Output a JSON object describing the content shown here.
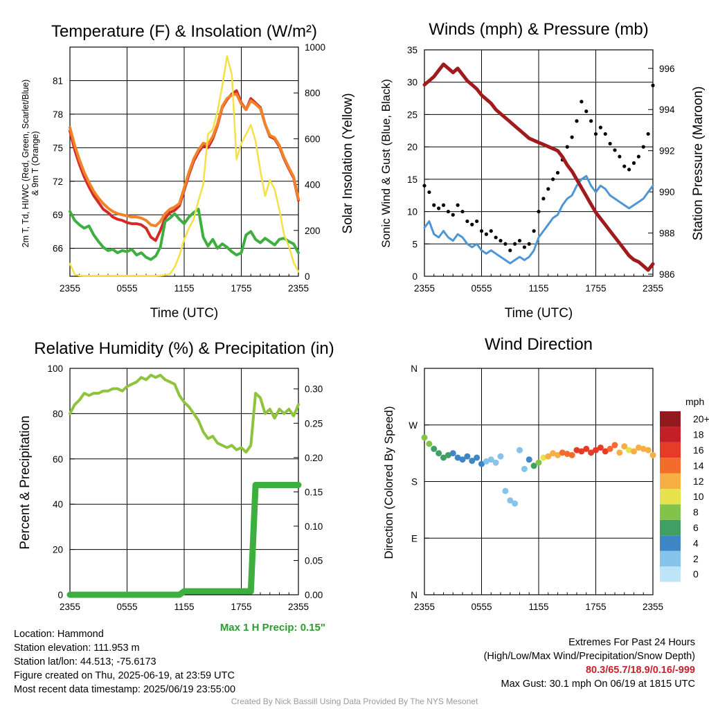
{
  "colors": {
    "temp": "#d42a27",
    "dewpoint": "#3daf3f",
    "heat_index": "#39a03a",
    "temp9m": "#f0832a",
    "solar": "#f5e045",
    "pressure": "#a01b1b",
    "wind": "#4d96d6",
    "gust": "#000000",
    "rh": "#8ec33e",
    "precip": "#3daf3f",
    "precip_label": "#2f9a2f",
    "extremes": "#c8202a",
    "credit": "#9a9a9a"
  },
  "panels": {
    "temperature": {
      "title": "Temperature (F) & Insolation (W/m²)",
      "y_left_label": "2m T, Td, HI/WC (Red, Green, Scarlet/Blue) & 9m T (Orange)",
      "y_right_label": "Solar Insolation (Yellow)",
      "x_label": "Time (UTC)"
    },
    "winds": {
      "title": "Winds (mph) & Pressure (mb)",
      "y_left_label": "Sonic Wind & Gust (Blue, Black)",
      "y_right_label": "Station Pressure (Maroon)",
      "x_label": "Time (UTC)"
    },
    "humidity": {
      "title": "Relative Humidity (%) & Precipitation (in)",
      "y_left_label": "Percent & Precipitation",
      "max_precip_label": "Max 1 H Precip: 0.15\""
    },
    "direction": {
      "title": "Wind Direction",
      "y_left_label": "Direction (Colored By Speed)",
      "legend_title": "mph"
    }
  },
  "chart_data": [
    {
      "type": "line",
      "title": "Temperature (F) & Insolation (W/m²)",
      "xlabel": "Time (UTC)",
      "ylabel": "2m T, Td, HI/WC (Red, Green, Scarlet/Blue) & 9m T (Orange)",
      "y2label": "Solar Insolation (Yellow)",
      "x_ticks": [
        "2355",
        "0555",
        "1155",
        "1755",
        "2355"
      ],
      "xlim": [
        0,
        24
      ],
      "ylim": [
        63.5,
        84
      ],
      "y_ticks": [
        66,
        69,
        72,
        75,
        78,
        81
      ],
      "y2lim": [
        0,
        1000
      ],
      "y2_ticks": [
        0,
        200,
        400,
        600,
        800,
        1000
      ],
      "x": [
        0,
        0.5,
        1,
        1.5,
        2,
        2.5,
        3,
        3.5,
        4,
        4.5,
        5,
        5.5,
        6,
        6.5,
        7,
        7.5,
        8,
        8.5,
        9,
        9.5,
        10,
        10.5,
        11,
        11.5,
        12,
        12.5,
        13,
        13.5,
        14,
        14.5,
        15,
        15.5,
        16,
        16.5,
        17,
        17.5,
        18,
        18.5,
        19,
        19.5,
        20,
        20.5,
        21,
        21.5,
        22,
        22.5,
        23,
        23.5,
        24
      ],
      "series": [
        {
          "name": "2m T",
          "axis": "left",
          "color": "#d42a27",
          "values": [
            76.5,
            74.8,
            73.5,
            72.4,
            71.5,
            70.7,
            70.1,
            69.5,
            69.2,
            68.8,
            68.6,
            68.5,
            68.3,
            68.2,
            68.2,
            68.1,
            67.8,
            67.0,
            66.7,
            67.6,
            68.7,
            69.2,
            69.4,
            69.8,
            71.2,
            72.6,
            73.8,
            74.6,
            75.2,
            75.0,
            75.8,
            77.0,
            78.6,
            79.3,
            79.8,
            80.1,
            79.0,
            78.4,
            79.4,
            79.0,
            78.6,
            77.1,
            76.0,
            75.8,
            75.1,
            74.0,
            73.1,
            72.3,
            70.3
          ]
        },
        {
          "name": "9m T",
          "axis": "left",
          "color": "#f0832a",
          "values": [
            76.8,
            75.2,
            73.9,
            72.8,
            71.9,
            71.1,
            70.5,
            70.0,
            69.6,
            69.3,
            69.1,
            69.0,
            68.9,
            68.8,
            68.8,
            68.7,
            68.5,
            68.1,
            68.0,
            68.4,
            69.1,
            69.5,
            69.7,
            70.0,
            71.4,
            72.8,
            74.0,
            74.8,
            75.4,
            75.3,
            76.0,
            77.1,
            78.7,
            79.4,
            79.7,
            79.8,
            78.9,
            78.4,
            79.2,
            78.9,
            78.5,
            77.1,
            76.1,
            75.9,
            75.2,
            74.1,
            73.2,
            72.4,
            70.4
          ]
        },
        {
          "name": "Td",
          "axis": "left",
          "color": "#3daf3f",
          "values": [
            69.3,
            68.5,
            68.1,
            67.8,
            68.0,
            67.2,
            66.6,
            66.1,
            65.8,
            65.9,
            65.6,
            65.8,
            65.7,
            65.9,
            65.4,
            65.6,
            65.2,
            65.0,
            65.3,
            66.1,
            68.4,
            68.7,
            69.1,
            68.6,
            68.2,
            68.8,
            69.2,
            69.5,
            67.0,
            66.2,
            66.8,
            66.0,
            66.4,
            66.1,
            65.7,
            65.4,
            65.6,
            67.2,
            67.5,
            66.8,
            66.5,
            66.9,
            66.6,
            66.3,
            66.8,
            66.9,
            66.6,
            66.4,
            65.6
          ]
        },
        {
          "name": "Solar Insolation",
          "axis": "right",
          "color": "#f5e045",
          "values": [
            55,
            8,
            3,
            2,
            2,
            2,
            2,
            2,
            2,
            2,
            2,
            2,
            2,
            2,
            2,
            2,
            2,
            2,
            2,
            3,
            5,
            10,
            40,
            90,
            160,
            210,
            250,
            330,
            400,
            620,
            640,
            720,
            830,
            960,
            880,
            510,
            580,
            620,
            660,
            590,
            460,
            350,
            420,
            380,
            290,
            180,
            130,
            60,
            20
          ]
        }
      ]
    },
    {
      "type": "line",
      "title": "Winds (mph) & Pressure (mb)",
      "xlabel": "Time (UTC)",
      "ylabel": "Sonic Wind & Gust (Blue, Black)",
      "y2label": "Station Pressure (Maroon)",
      "x_ticks": [
        "2355",
        "0555",
        "1155",
        "1755",
        "2355"
      ],
      "xlim": [
        0,
        24
      ],
      "ylim": [
        0,
        35
      ],
      "y_ticks": [
        0,
        5,
        10,
        15,
        20,
        25,
        30,
        35
      ],
      "y2lim": [
        985.9,
        996.9
      ],
      "y2_ticks": [
        986,
        988,
        990,
        992,
        994,
        996
      ],
      "x": [
        0,
        0.5,
        1,
        1.5,
        2,
        2.5,
        3,
        3.5,
        4,
        4.5,
        5,
        5.5,
        6,
        6.5,
        7,
        7.5,
        8,
        8.5,
        9,
        9.5,
        10,
        10.5,
        11,
        11.5,
        12,
        12.5,
        13,
        13.5,
        14,
        14.5,
        15,
        15.5,
        16,
        16.5,
        17,
        17.5,
        18,
        18.5,
        19,
        19.5,
        20,
        20.5,
        21,
        21.5,
        22,
        22.5,
        23,
        23.5,
        24
      ],
      "series": [
        {
          "name": "Sonic Wind",
          "axis": "left",
          "color": "#4d96d6",
          "values": [
            7.5,
            8.5,
            6.5,
            6.0,
            7.0,
            6.0,
            5.5,
            6.5,
            6.0,
            5.0,
            4.5,
            5.0,
            4.0,
            3.5,
            4.0,
            3.5,
            3.0,
            2.5,
            2.0,
            2.5,
            3.0,
            2.5,
            3.0,
            4.0,
            6.0,
            7.0,
            8.0,
            9.0,
            9.5,
            11.0,
            12.0,
            12.5,
            14.0,
            15.0,
            15.5,
            14.0,
            13.0,
            14.0,
            13.5,
            12.5,
            12.0,
            11.5,
            11.0,
            10.5,
            11.0,
            11.5,
            12.0,
            13.0,
            14.0
          ]
        },
        {
          "name": "Gust",
          "axis": "left",
          "color": "#000000",
          "values": [
            14.0,
            13.0,
            11.0,
            10.5,
            11.0,
            10.0,
            9.5,
            11.0,
            10.0,
            8.5,
            8.0,
            8.5,
            7.0,
            6.5,
            7.0,
            6.0,
            5.5,
            5.0,
            4.0,
            5.0,
            5.5,
            4.5,
            5.0,
            7.0,
            10.0,
            12.0,
            13.5,
            15.0,
            16.0,
            18.0,
            20.0,
            21.5,
            24.0,
            27.0,
            25.5,
            24.0,
            22.0,
            23.0,
            22.0,
            20.5,
            19.5,
            18.5,
            17.0,
            16.5,
            17.5,
            18.5,
            20.0,
            22.0,
            29.5
          ]
        },
        {
          "name": "Station Pressure",
          "axis": "right",
          "color": "#a01b1b",
          "values": [
            995.2,
            995.4,
            995.6,
            995.9,
            996.2,
            996.0,
            995.8,
            996.0,
            995.7,
            995.4,
            995.2,
            995.0,
            994.7,
            994.5,
            994.3,
            994.0,
            993.8,
            993.6,
            993.4,
            993.2,
            993.0,
            992.8,
            992.6,
            992.5,
            992.4,
            992.3,
            992.2,
            992.1,
            992.0,
            991.7,
            991.3,
            991.0,
            990.6,
            990.2,
            989.8,
            989.4,
            989.0,
            988.7,
            988.4,
            988.1,
            987.8,
            987.5,
            987.2,
            986.9,
            986.7,
            986.6,
            986.4,
            986.2,
            986.5
          ]
        }
      ]
    },
    {
      "type": "line",
      "title": "Relative Humidity (%) & Precipitation (in)",
      "ylabel": "Percent & Precipitation",
      "x_ticks": [
        "2355",
        "0555",
        "1155",
        "1755",
        "2355"
      ],
      "xlim": [
        0,
        24
      ],
      "ylim": [
        0,
        100
      ],
      "y_ticks": [
        0,
        20,
        40,
        60,
        80,
        100
      ],
      "y2lim": [
        0,
        0.33
      ],
      "y2_ticks": [
        0.0,
        0.05,
        0.1,
        0.15,
        0.2,
        0.25,
        0.3
      ],
      "x": [
        0,
        0.5,
        1,
        1.5,
        2,
        2.5,
        3,
        3.5,
        4,
        4.5,
        5,
        5.5,
        6,
        6.5,
        7,
        7.5,
        8,
        8.5,
        9,
        9.5,
        10,
        10.5,
        11,
        11.5,
        12,
        12.5,
        13,
        13.5,
        14,
        14.5,
        15,
        15.5,
        16,
        16.5,
        17,
        17.5,
        18,
        18.5,
        19,
        19.5,
        20,
        20.5,
        21,
        21.5,
        22,
        22.5,
        23,
        23.5,
        24
      ],
      "series": [
        {
          "name": "Relative Humidity",
          "axis": "left",
          "color": "#8ec33e",
          "values": [
            80,
            84,
            86,
            89,
            88,
            89,
            89,
            90,
            90,
            91,
            91,
            90,
            92,
            93,
            94,
            96,
            95,
            97,
            96,
            97,
            95,
            94,
            93,
            88,
            85,
            83,
            80,
            77,
            72,
            69,
            70,
            67,
            66,
            65,
            66,
            64,
            65,
            63,
            66,
            89,
            87,
            80,
            82,
            78,
            82,
            80,
            82,
            79,
            84
          ]
        },
        {
          "name": "Precipitation",
          "axis": "right",
          "color": "#3daf3f",
          "values": [
            0,
            0,
            0,
            0,
            0,
            0,
            0,
            0,
            0,
            0,
            0,
            0,
            0,
            0,
            0,
            0,
            0,
            0,
            0,
            0,
            0,
            0,
            0,
            0,
            0.005,
            0.005,
            0.005,
            0.005,
            0.005,
            0.005,
            0.005,
            0.005,
            0.005,
            0.005,
            0.005,
            0.005,
            0.005,
            0.005,
            0.005,
            0.16,
            0.16,
            0.16,
            0.16,
            0.16,
            0.16,
            0.16,
            0.16,
            0.16,
            0.16
          ]
        }
      ]
    },
    {
      "type": "scatter",
      "title": "Wind Direction",
      "ylabel": "Direction (Colored By Speed)",
      "x_ticks": [
        "2355",
        "0555",
        "1155",
        "1755",
        "2355"
      ],
      "xlim": [
        0,
        24
      ],
      "y_ticks": [
        "N",
        "E",
        "S",
        "W",
        "N"
      ],
      "ylim": [
        0,
        360
      ],
      "colorbar": {
        "title": "mph",
        "levels": [
          "0",
          "2",
          "4",
          "6",
          "8",
          "10",
          "12",
          "14",
          "16",
          "18",
          "20+"
        ],
        "colors": [
          "#bde4f7",
          "#86c2ea",
          "#3f86c6",
          "#40a064",
          "#84c34a",
          "#e5e24b",
          "#f7ae42",
          "#f46c2b",
          "#e63b27",
          "#c31f26",
          "#901a1d"
        ]
      },
      "x": [
        0,
        0.5,
        1,
        1.5,
        2,
        2.5,
        3,
        3.5,
        4,
        4.5,
        5,
        5.5,
        6,
        6.5,
        7,
        7.5,
        8,
        8.5,
        9,
        9.5,
        10,
        10.5,
        11,
        11.5,
        12,
        12.5,
        13,
        13.5,
        14,
        14.5,
        15,
        15.5,
        16,
        16.5,
        17,
        17.5,
        18,
        18.5,
        19,
        19.5,
        20,
        20.5,
        21,
        21.5,
        22,
        22.5,
        23,
        23.5,
        24
      ],
      "direction_deg": [
        250,
        240,
        232,
        225,
        218,
        222,
        225,
        218,
        215,
        220,
        213,
        218,
        208,
        212,
        215,
        210,
        220,
        165,
        150,
        145,
        230,
        200,
        215,
        205,
        210,
        218,
        220,
        225,
        222,
        226,
        224,
        222,
        230,
        228,
        232,
        226,
        230,
        234,
        228,
        232,
        238,
        226,
        236,
        230,
        228,
        234,
        232,
        230,
        222
      ],
      "speed_mph": [
        8,
        8,
        7,
        7,
        7,
        6,
        5,
        5,
        5,
        4,
        4,
        4,
        4,
        3,
        3,
        3,
        3,
        2,
        2,
        2,
        2,
        3,
        5,
        7,
        9,
        10,
        12,
        12,
        13,
        14,
        15,
        15,
        16,
        16,
        17,
        17,
        17,
        16,
        16,
        15,
        14,
        13,
        12,
        11,
        12,
        12,
        13,
        13,
        12
      ]
    }
  ],
  "info_left": [
    "Location: Hammond",
    "Station elevation: 111.953 m",
    "Station lat/lon: 44.513; -75.6173",
    "Figure created on Thu, 2025-06-19, at 23:59 UTC",
    "Most recent data timestamp: 2025/06/19 23:55:00"
  ],
  "info_right": {
    "line1": "Extremes For Past 24 Hours",
    "line2": "(High/Low/Max Wind/Precipitation/Snow Depth)",
    "values": "80.3/65.7/18.9/0.16/-999",
    "max_gust": "Max Gust: 30.1 mph On 06/19 at 1815 UTC"
  },
  "credit": "Created By Nick Bassill Using Data Provided By The NYS Mesonet"
}
